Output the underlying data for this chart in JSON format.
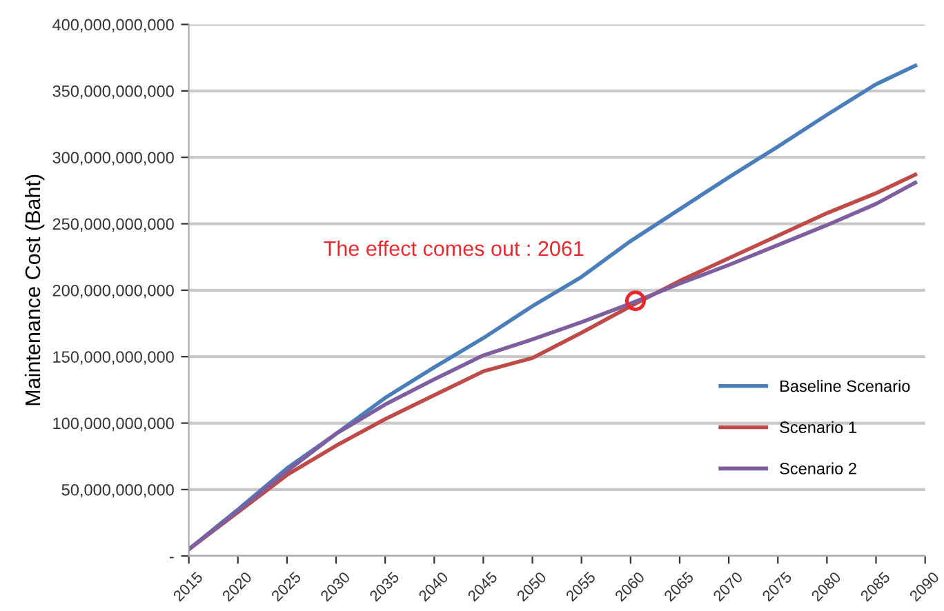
{
  "chart_data": {
    "type": "line",
    "ylabel": "Maintenance Cost (Baht)",
    "x": [
      2015,
      2020,
      2025,
      2030,
      2035,
      2040,
      2045,
      2050,
      2055,
      2060,
      2065,
      2070,
      2075,
      2080,
      2085,
      2089
    ],
    "series": [
      {
        "name": "Baseline Scenario",
        "color": "#4a7ebb",
        "values": [
          5000000000,
          35000000000,
          66000000000,
          92000000000,
          119000000000,
          142000000000,
          164000000000,
          188000000000,
          210000000000,
          237000000000,
          261000000000,
          285000000000,
          308000000000,
          332000000000,
          355000000000,
          369000000000
        ]
      },
      {
        "name": "Scenario 1",
        "color": "#be4b48",
        "values": [
          5000000000,
          33000000000,
          61000000000,
          83000000000,
          103000000000,
          121000000000,
          139000000000,
          149000000000,
          168000000000,
          188000000000,
          207000000000,
          224000000000,
          241000000000,
          258000000000,
          273000000000,
          287000000000
        ]
      },
      {
        "name": "Scenario 2",
        "color": "#7d5fa0",
        "values": [
          5000000000,
          34000000000,
          64000000000,
          92000000000,
          114000000000,
          133000000000,
          151000000000,
          163000000000,
          176000000000,
          190000000000,
          205000000000,
          219000000000,
          234000000000,
          249000000000,
          265000000000,
          281000000000
        ]
      },
      {
        "type": "scatter",
        "color": "#e8282d",
        "marker": "circle",
        "x": [
          2060.5
        ],
        "values": [
          192000000000
        ]
      }
    ],
    "annotations": [
      "The effect comes out : 2061"
    ],
    "xlim": [
      2015,
      2090
    ],
    "xticks": [
      2015,
      2020,
      2025,
      2030,
      2035,
      2040,
      2045,
      2050,
      2055,
      2060,
      2065,
      2070,
      2075,
      2080,
      2085,
      2090
    ],
    "ylim": [
      0,
      400000000000
    ],
    "yticks": [
      {
        "value": 0,
        "label": "-"
      },
      {
        "value": 50000000000,
        "label": "50,000,000,000"
      },
      {
        "value": 100000000000,
        "label": "100,000,000,000"
      },
      {
        "value": 150000000000,
        "label": "150,000,000,000"
      },
      {
        "value": 200000000000,
        "label": "200,000,000,000"
      },
      {
        "value": 250000000000,
        "label": "250,000,000,000"
      },
      {
        "value": 300000000000,
        "label": "300,000,000,000"
      },
      {
        "value": 350000000000,
        "label": "350,000,000,000"
      },
      {
        "value": 400000000000,
        "label": "400,000,000,000"
      }
    ],
    "grid": "y",
    "legend": "lower right",
    "marker": "none",
    "line_style": "solid"
  }
}
